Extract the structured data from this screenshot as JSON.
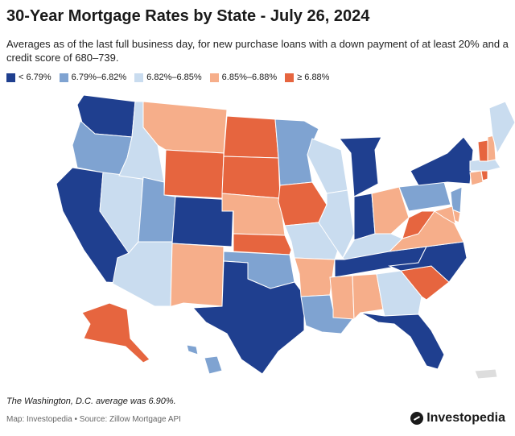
{
  "title": "30-Year Mortgage Rates by State - July 26, 2024",
  "subtitle": "Averages as of the last full business day, for new purchase loans with a down payment of at least 20% and a credit score of 680–739.",
  "legend": [
    {
      "label": "< 6.79%",
      "color": "#1f3f8f"
    },
    {
      "label": "6.79%–6.82%",
      "color": "#7fa3d1"
    },
    {
      "label": "6.82%–6.85%",
      "color": "#c9dcef"
    },
    {
      "label": "6.85%–6.88%",
      "color": "#f6ae8a"
    },
    {
      "label": "≥ 6.88%",
      "color": "#e6653f"
    }
  ],
  "bins": {
    "WA": 0,
    "OR": 1,
    "CA": 0,
    "NV": 2,
    "ID": 2,
    "MT": 3,
    "WY": 4,
    "UT": 1,
    "AZ": 2,
    "CO": 0,
    "NM": 3,
    "ND": 4,
    "SD": 4,
    "NE": 3,
    "KS": 4,
    "OK": 1,
    "TX": 0,
    "MN": 1,
    "IA": 4,
    "MO": 2,
    "AR": 3,
    "LA": 1,
    "WI": 2,
    "IL": 2,
    "MI": 0,
    "IN": 0,
    "OH": 3,
    "KY": 2,
    "TN": 0,
    "MS": 3,
    "AL": 3,
    "GA": 2,
    "FL": 0,
    "SC": 4,
    "NC": 0,
    "VA": 3,
    "WV": 4,
    "PA": 1,
    "NY": 0,
    "NJ": 1,
    "DE": 3,
    "MD": 3,
    "CT": 3,
    "RI": 4,
    "MA": 2,
    "VT": 4,
    "NH": 3,
    "ME": 2,
    "AK": 4,
    "HI": 1
  },
  "note": "The Washington, D.C. average was 6.90%.",
  "source": "Map: Investopedia • Source: Zillow Mortgage API",
  "brand": "Investopedia"
}
